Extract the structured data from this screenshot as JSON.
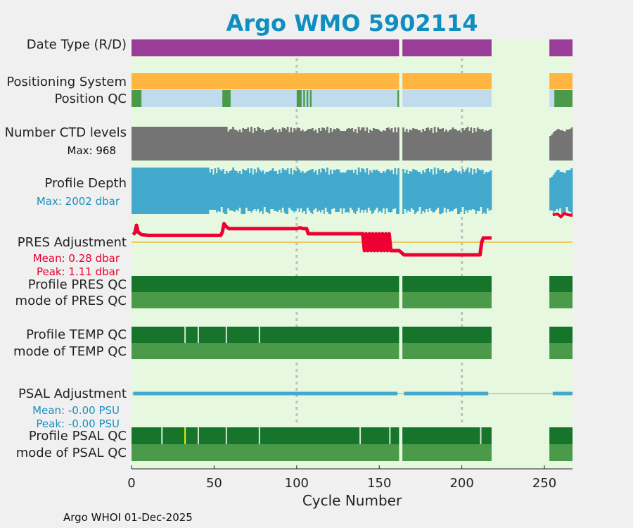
{
  "chart_data": {
    "type": "table",
    "title": "Argo WMO 5902114",
    "xlabel": "Cycle Number",
    "xlim": [
      0,
      267
    ],
    "xticks": [
      0,
      50,
      100,
      150,
      200,
      250
    ],
    "gridlines_x": [
      100,
      200
    ],
    "footer": "Argo WHOI 01-Dec-2025",
    "data_gaps": [
      [
        162,
        164
      ],
      [
        218,
        253
      ]
    ],
    "rows": {
      "date_type": {
        "label": "Date Type (R/D)",
        "color": "#993d99"
      },
      "positioning": {
        "label": "Positioning System",
        "color": "#ffb540"
      },
      "position_qc": {
        "label": "Position QC",
        "good_color": "#4a9a4a",
        "missing_color": "#c0dcec",
        "good_ranges": [
          [
            0,
            6
          ],
          [
            55,
            60
          ],
          [
            100,
            103
          ],
          [
            104,
            105
          ],
          [
            106,
            107
          ],
          [
            108,
            109
          ],
          [
            161,
            162
          ],
          [
            256,
            267
          ]
        ]
      },
      "ctd_levels": {
        "label": "Number CTD levels",
        "max_text": "Max: 968",
        "color": "#747474"
      },
      "profile_depth": {
        "label": "Profile Depth",
        "max_text": "Max: 2002 dbar",
        "color": "#43a9cd",
        "text_color": "#1a8fbf"
      },
      "pres_adjustment": {
        "label": "PRES Adjustment",
        "mean_text": "Mean: 0.28 dbar",
        "peak_text": "Peak: 1.11 dbar",
        "color": "#ee0033"
      },
      "profile_pres_qc": {
        "label": "Profile PRES QC",
        "color": "#16742b"
      },
      "mode_pres_qc": {
        "label": "mode of PRES QC",
        "color": "#4a9a4a"
      },
      "profile_temp_qc": {
        "label": "Profile TEMP QC",
        "color": "#16742b",
        "marks": [
          32,
          40,
          57,
          77
        ]
      },
      "mode_temp_qc": {
        "label": "mode of TEMP QC",
        "color": "#4a9a4a"
      },
      "psal_adjustment": {
        "label": "PSAL Adjustment",
        "mean_text": "Mean: -0.00 PSU",
        "peak_text": "Peak: -0.00 PSU",
        "color": "#43a9cd"
      },
      "profile_psal_qc": {
        "label": "Profile PSAL QC",
        "color": "#16742b",
        "marks": [
          18,
          40,
          57,
          77,
          138,
          156,
          211
        ],
        "yellow_marks": [
          32
        ]
      },
      "mode_psal_qc": {
        "label": "mode of PSAL QC",
        "color": "#4a9a4a"
      }
    },
    "pres_adjustment_series": {
      "x": [
        1,
        2,
        3,
        4,
        6,
        10,
        20,
        40,
        54,
        55,
        56,
        57,
        59,
        62,
        80,
        100,
        102,
        104,
        106,
        107,
        108,
        120,
        135,
        140,
        141,
        142,
        143,
        144,
        145,
        146,
        147,
        148,
        149,
        150,
        151,
        152,
        153,
        154,
        155,
        156,
        157,
        158,
        160,
        162,
        165,
        180,
        200,
        210,
        211,
        212,
        213,
        214,
        218
      ],
      "y": [
        0.45,
        0.55,
        1.0,
        0.6,
        0.45,
        0.4,
        0.4,
        0.4,
        0.4,
        0.6,
        1.1,
        0.95,
        0.8,
        0.8,
        0.8,
        0.8,
        0.85,
        0.8,
        0.8,
        0.5,
        0.5,
        0.5,
        0.5,
        0.5,
        -0.5,
        0.5,
        -0.5,
        0.5,
        -0.5,
        0.5,
        -0.5,
        0.5,
        -0.5,
        0.5,
        -0.5,
        0.5,
        -0.5,
        0.5,
        -0.5,
        0.5,
        -0.5,
        -0.5,
        -0.5,
        -0.5,
        -0.75,
        -0.75,
        -0.75,
        -0.75,
        -0.75,
        0.0,
        0.25,
        0.25,
        0.25
      ]
    }
  }
}
